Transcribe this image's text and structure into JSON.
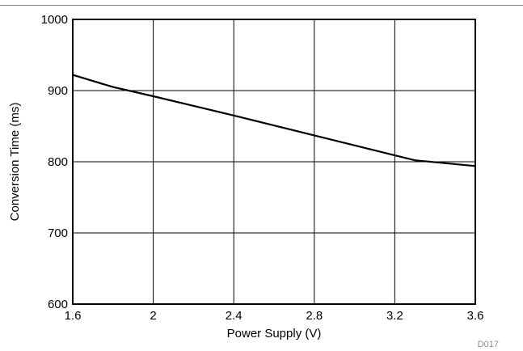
{
  "chart_data": {
    "type": "line",
    "title": "",
    "xlabel": "Power Supply (V)",
    "ylabel": "Conversion Time (ms)",
    "xlim": [
      1.6,
      3.6
    ],
    "ylim": [
      600,
      1000
    ],
    "xticks": [
      1.6,
      2,
      2.4,
      2.8,
      3.2,
      3.6
    ],
    "xtick_labels": [
      "1.6",
      "2",
      "2.4",
      "2.8",
      "3.2",
      "3.6"
    ],
    "yticks": [
      600,
      700,
      800,
      900,
      1000
    ],
    "ytick_labels": [
      "600",
      "700",
      "800",
      "900",
      "1000"
    ],
    "grid": true,
    "legend": "none",
    "series": [
      {
        "color": "#000000",
        "x": [
          1.6,
          1.8,
          2.0,
          2.4,
          2.8,
          3.2,
          3.3,
          3.6
        ],
        "y": [
          922,
          905,
          892,
          865,
          837,
          809,
          802,
          794
        ]
      }
    ]
  },
  "figure_code": "D017",
  "colors": {
    "line": "#000000",
    "grid": "#000000",
    "divider": "#808080",
    "code_text": "#8c8c8c"
  }
}
